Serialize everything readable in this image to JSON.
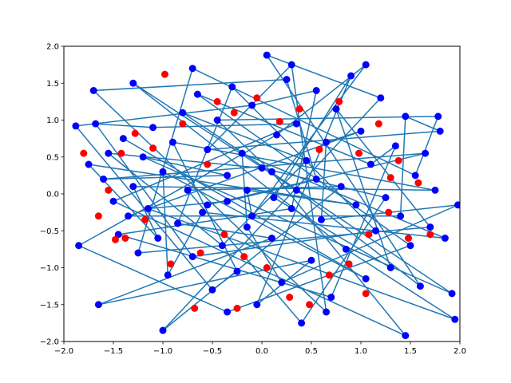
{
  "chart_data": {
    "type": "scatter",
    "title": "",
    "xlabel": "",
    "ylabel": "",
    "xlim": [
      -2.0,
      2.0
    ],
    "ylim": [
      -2.0,
      2.0
    ],
    "grid": false,
    "xticks": [
      -2.0,
      -1.5,
      -1.0,
      -0.5,
      0.0,
      0.5,
      1.0,
      1.5,
      2.0
    ],
    "yticks": [
      -2.0,
      -1.5,
      -1.0,
      -0.5,
      0.0,
      0.5,
      1.0,
      1.5,
      2.0
    ],
    "xtick_labels": [
      "−2.0",
      "−1.5",
      "−1.0",
      "−0.5",
      "0.0",
      "0.5",
      "1.0",
      "1.5",
      "2.0"
    ],
    "ytick_labels": [
      "−2.0",
      "−1.5",
      "−1.0",
      "−0.5",
      "0.0",
      "0.5",
      "1.0",
      "1.5",
      "2.0"
    ],
    "colors": {
      "blue_points": "#0000ff",
      "red_points": "#ff0000",
      "lines": "#1f77b4"
    },
    "series": [
      {
        "marker": "blue_points",
        "connected_by_lines": true,
        "points": [
          [
            -1.75,
            0.4
          ],
          [
            -1.68,
            0.95
          ],
          [
            -1.6,
            0.2
          ],
          [
            -1.55,
            0.55
          ],
          [
            -1.5,
            -0.1
          ],
          [
            -1.45,
            -0.55
          ],
          [
            -1.4,
            0.75
          ],
          [
            -1.35,
            -0.3
          ],
          [
            -1.3,
            0.1
          ],
          [
            -1.25,
            -0.8
          ],
          [
            -1.2,
            0.5
          ],
          [
            -1.15,
            -0.2
          ],
          [
            -1.1,
            0.9
          ],
          [
            -1.05,
            -0.6
          ],
          [
            -1.0,
            0.3
          ],
          [
            -0.95,
            -1.1
          ],
          [
            -0.9,
            0.7
          ],
          [
            -0.85,
            -0.4
          ],
          [
            -0.8,
            1.1
          ],
          [
            -0.75,
            0.05
          ],
          [
            -0.7,
            -0.85
          ],
          [
            -0.65,
            1.35
          ],
          [
            -0.6,
            -0.25
          ],
          [
            -0.55,
            0.6
          ],
          [
            -0.5,
            -1.3
          ],
          [
            -0.45,
            1.0
          ],
          [
            -0.4,
            -0.7
          ],
          [
            -0.35,
            0.25
          ],
          [
            -0.3,
            1.45
          ],
          [
            -0.25,
            -1.05
          ],
          [
            -0.2,
            0.55
          ],
          [
            -0.15,
            -0.45
          ],
          [
            -0.1,
            1.2
          ],
          [
            -0.05,
            -1.5
          ],
          [
            0.0,
            0.35
          ],
          [
            0.05,
            1.88
          ],
          [
            0.1,
            -0.6
          ],
          [
            0.15,
            0.8
          ],
          [
            0.2,
            -1.2
          ],
          [
            0.25,
            1.55
          ],
          [
            0.3,
            -0.2
          ],
          [
            0.35,
            0.95
          ],
          [
            0.4,
            -1.75
          ],
          [
            0.45,
            0.45
          ],
          [
            0.5,
            -0.9
          ],
          [
            0.55,
            1.4
          ],
          [
            0.6,
            -0.35
          ],
          [
            0.65,
            0.7
          ],
          [
            0.7,
            -1.4
          ],
          [
            0.75,
            1.15
          ],
          [
            0.8,
            0.1
          ],
          [
            0.85,
            -0.75
          ],
          [
            0.9,
            1.6
          ],
          [
            0.95,
            -0.15
          ],
          [
            1.0,
            0.85
          ],
          [
            1.05,
            -1.15
          ],
          [
            1.1,
            0.4
          ],
          [
            1.15,
            -0.5
          ],
          [
            1.2,
            1.3
          ],
          [
            1.25,
            -0.05
          ],
          [
            1.3,
            -1.0
          ],
          [
            1.35,
            0.65
          ],
          [
            1.4,
            -0.3
          ],
          [
            1.45,
            1.05
          ],
          [
            1.5,
            -0.7
          ],
          [
            1.55,
            0.25
          ],
          [
            1.6,
            -1.25
          ],
          [
            1.65,
            0.55
          ],
          [
            1.7,
            -0.45
          ],
          [
            1.75,
            0.05
          ],
          [
            1.8,
            0.85
          ],
          [
            1.85,
            -0.6
          ],
          [
            -1.85,
            -0.7
          ],
          [
            -1.65,
            -1.5
          ],
          [
            -1.3,
            1.5
          ],
          [
            -1.0,
            -1.85
          ],
          [
            -0.7,
            1.7
          ],
          [
            -0.35,
            -1.6
          ],
          [
            0.3,
            1.75
          ],
          [
            0.65,
            -1.6
          ],
          [
            1.05,
            1.75
          ],
          [
            1.45,
            -1.92
          ],
          [
            1.95,
            -1.7
          ],
          [
            1.92,
            -1.35
          ],
          [
            1.78,
            1.05
          ],
          [
            -1.88,
            0.92
          ],
          [
            -1.7,
            1.4
          ],
          [
            1.98,
            -0.15
          ],
          [
            -0.15,
            0.05
          ],
          [
            0.12,
            -0.05
          ],
          [
            -0.35,
            -0.1
          ],
          [
            0.35,
            0.05
          ],
          [
            0.1,
            0.3
          ],
          [
            -0.1,
            -0.3
          ],
          [
            0.55,
            0.2
          ],
          [
            -0.55,
            -0.15
          ]
        ]
      },
      {
        "marker": "red_points",
        "connected_by_lines": false,
        "points": [
          [
            -1.8,
            0.55
          ],
          [
            -1.55,
            0.05
          ],
          [
            -1.42,
            0.55
          ],
          [
            -1.38,
            -0.6
          ],
          [
            -1.28,
            0.82
          ],
          [
            -1.18,
            -0.35
          ],
          [
            -1.1,
            0.62
          ],
          [
            -0.98,
            1.62
          ],
          [
            -0.92,
            -0.95
          ],
          [
            -0.8,
            0.95
          ],
          [
            -0.68,
            -1.55
          ],
          [
            -0.62,
            -0.8
          ],
          [
            -0.55,
            0.4
          ],
          [
            -0.45,
            1.25
          ],
          [
            -0.38,
            -0.55
          ],
          [
            -0.28,
            1.1
          ],
          [
            -0.18,
            -0.85
          ],
          [
            -0.05,
            1.3
          ],
          [
            0.05,
            -1.0
          ],
          [
            0.18,
            0.98
          ],
          [
            0.28,
            -1.4
          ],
          [
            0.38,
            1.15
          ],
          [
            0.48,
            -1.5
          ],
          [
            0.58,
            0.6
          ],
          [
            0.68,
            -1.1
          ],
          [
            0.78,
            1.25
          ],
          [
            0.88,
            -0.95
          ],
          [
            0.98,
            0.55
          ],
          [
            1.08,
            -0.55
          ],
          [
            1.18,
            0.95
          ],
          [
            1.28,
            -0.25
          ],
          [
            1.38,
            0.45
          ],
          [
            1.48,
            -0.6
          ],
          [
            1.58,
            0.15
          ],
          [
            1.7,
            -0.55
          ],
          [
            1.3,
            0.22
          ],
          [
            -1.65,
            -0.3
          ],
          [
            -1.48,
            -0.62
          ],
          [
            1.05,
            -1.35
          ],
          [
            -0.25,
            -1.55
          ]
        ]
      }
    ]
  }
}
